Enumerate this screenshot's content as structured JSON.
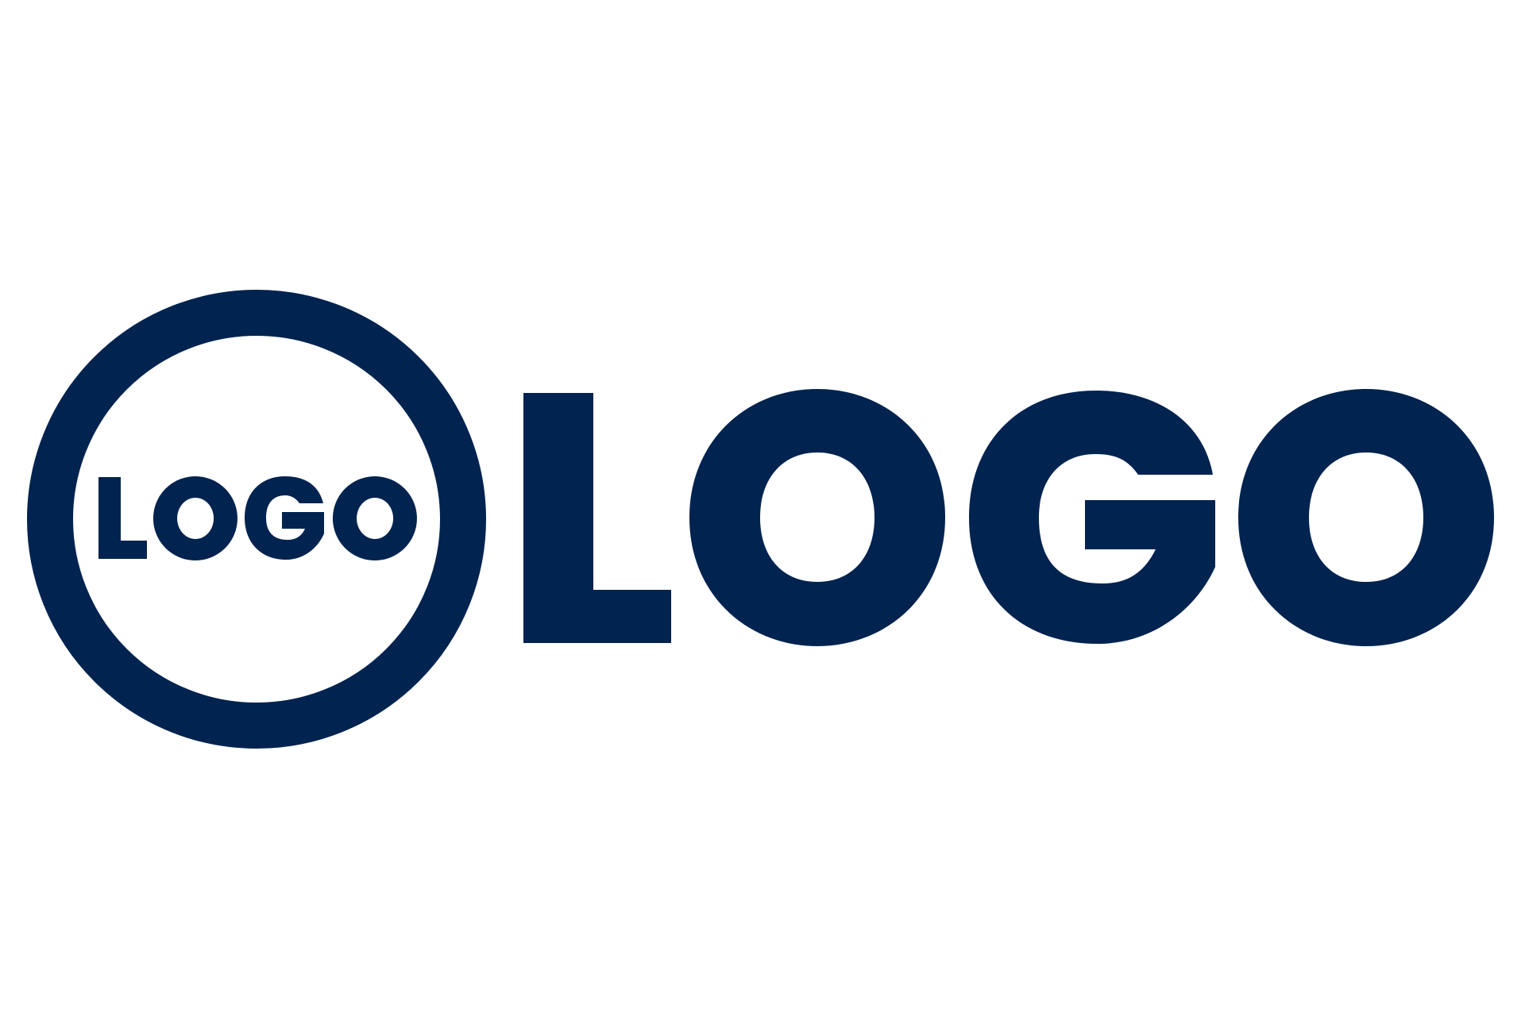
{
  "logo": {
    "emblem_text": "LOGO",
    "wordmark_text": "LOGO",
    "color": "#00234F",
    "background": "#FFFFFF"
  }
}
